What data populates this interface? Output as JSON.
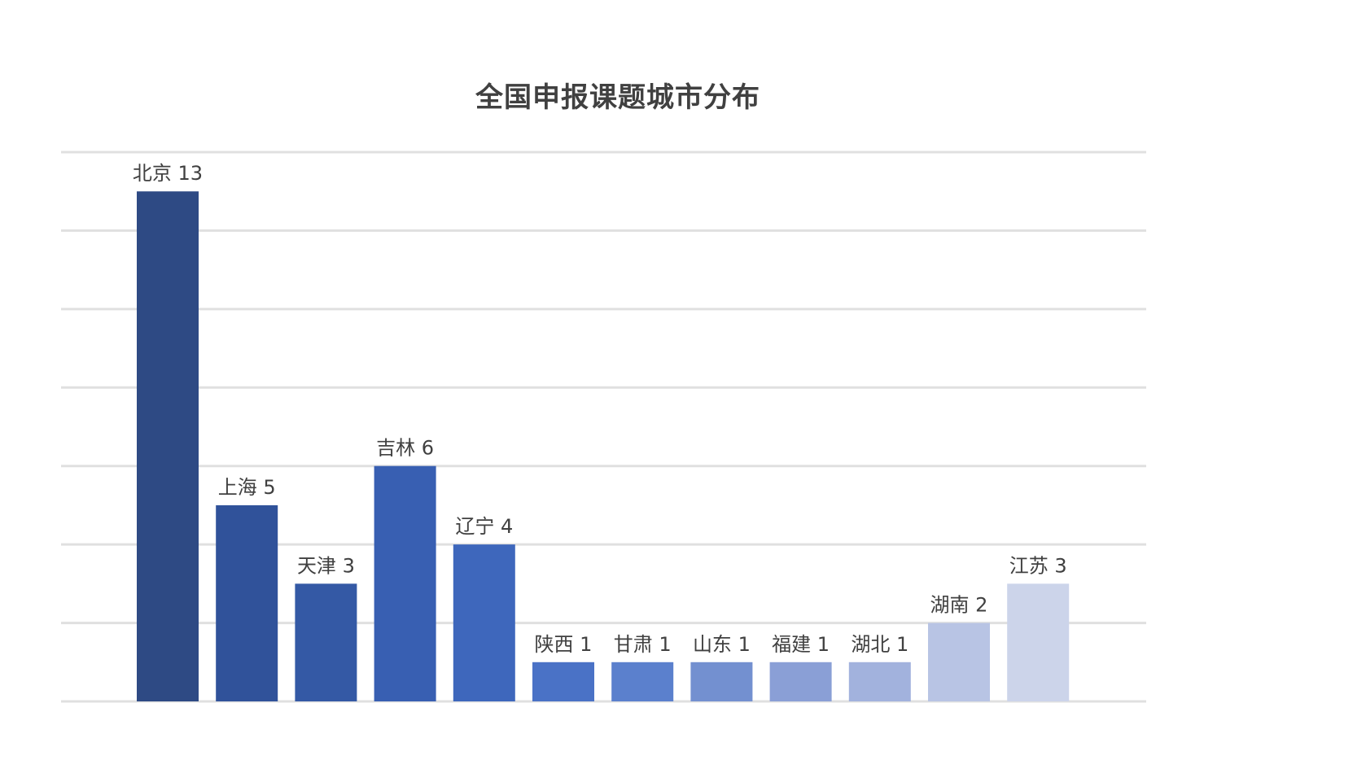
{
  "chart_data": {
    "type": "bar",
    "title": "全国申报课题城市分布",
    "categories": [
      "北京",
      "上海",
      "天津",
      "吉林",
      "辽宁",
      "陕西",
      "甘肃",
      "山东",
      "福建",
      "湖北",
      "湖南",
      "江苏"
    ],
    "values": [
      13,
      5,
      3,
      6,
      4,
      1,
      1,
      1,
      1,
      1,
      2,
      3
    ],
    "data_labels": [
      "北京 13",
      "上海 5",
      "天津 3",
      "吉林 6",
      "辽宁 4",
      "陕西 1",
      "甘肃 1",
      "山东 1",
      "福建 1",
      "湖北 1",
      "湖南 2",
      "江苏 3"
    ],
    "ylim": [
      0,
      14
    ],
    "grid": true,
    "legend": "none",
    "colors": [
      "#2e4a84",
      "#30529a",
      "#3459a5",
      "#385fb2",
      "#3e67bc",
      "#4a72c6",
      "#5b80cd",
      "#7390d0",
      "#8a9fd6",
      "#a2b2dd",
      "#b8c4e4",
      "#ccd4ea"
    ],
    "grid_color": "#e0e0e0"
  }
}
